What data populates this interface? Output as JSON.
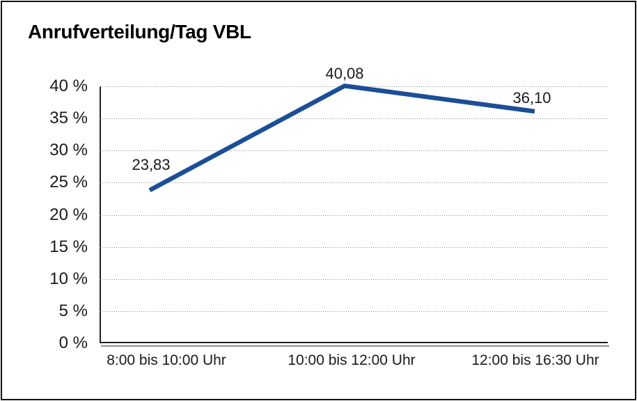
{
  "chart_data": {
    "type": "line",
    "title": "Anrufverteilung/Tag VBL",
    "categories": [
      "8:00 bis 10:00 Uhr",
      "10:00 bis 12:00 Uhr",
      "12:00 bis 16:30 Uhr"
    ],
    "values": [
      23.83,
      40.08,
      36.1
    ],
    "value_labels": [
      "23,83",
      "40,08",
      "36,10"
    ],
    "xlabel": "",
    "ylabel": "",
    "ylim": [
      0,
      40
    ],
    "y_tick_step": 5,
    "y_tick_labels": [
      "0 %",
      "5 %",
      "10 %",
      "15 %",
      "20 %",
      "25 %",
      "30 %",
      "35 %",
      "40 %"
    ],
    "grid": "horizontal-dotted",
    "legend_position": "none",
    "line_color": "#1b4e97",
    "axis_color": "#1f1f1f",
    "grid_color": "#8a8a8a",
    "text_color": "#1a1a1a"
  }
}
